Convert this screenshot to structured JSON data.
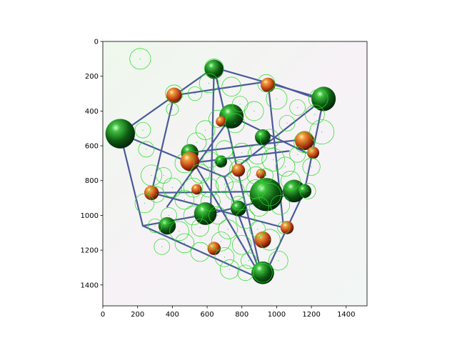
{
  "chart_data": {
    "type": "scatter",
    "title": "",
    "xlabel": "",
    "ylabel": "",
    "xlim": [
      0,
      1520
    ],
    "ylim": [
      1520,
      0
    ],
    "y_inverted": true,
    "grid": false,
    "legend": "none",
    "x_ticks": [
      0,
      200,
      400,
      600,
      800,
      1000,
      1200,
      1400
    ],
    "y_ticks": [
      0,
      200,
      400,
      600,
      800,
      1000,
      1200,
      1400
    ],
    "background_image": "photo of a ball-and-stick crystal lattice model (green and orange spheres on a white cloth)",
    "marker_style": "hollow circle",
    "marker_color": "#22dd22",
    "series": [
      {
        "points": [
          {
            "x": 215,
            "y": 100,
            "r": 60
          },
          {
            "x": 640,
            "y": 155,
            "r": 55
          },
          {
            "x": 610,
            "y": 240,
            "r": 55
          },
          {
            "x": 740,
            "y": 260,
            "r": 55
          },
          {
            "x": 940,
            "y": 240,
            "r": 50
          },
          {
            "x": 1000,
            "y": 330,
            "r": 60
          },
          {
            "x": 1120,
            "y": 380,
            "r": 45
          },
          {
            "x": 1240,
            "y": 330,
            "r": 55
          },
          {
            "x": 1220,
            "y": 420,
            "r": 55
          },
          {
            "x": 410,
            "y": 300,
            "r": 50
          },
          {
            "x": 400,
            "y": 390,
            "r": 35
          },
          {
            "x": 530,
            "y": 300,
            "r": 40
          },
          {
            "x": 790,
            "y": 360,
            "r": 45
          },
          {
            "x": 870,
            "y": 400,
            "r": 55
          },
          {
            "x": 1060,
            "y": 470,
            "r": 45
          },
          {
            "x": 660,
            "y": 445,
            "r": 50
          },
          {
            "x": 760,
            "y": 470,
            "r": 55
          },
          {
            "x": 590,
            "y": 510,
            "r": 55
          },
          {
            "x": 230,
            "y": 510,
            "r": 45
          },
          {
            "x": 1260,
            "y": 520,
            "r": 70
          },
          {
            "x": 960,
            "y": 560,
            "r": 55
          },
          {
            "x": 540,
            "y": 580,
            "r": 55
          },
          {
            "x": 1160,
            "y": 580,
            "r": 60
          },
          {
            "x": 1120,
            "y": 650,
            "r": 45
          },
          {
            "x": 250,
            "y": 620,
            "r": 45
          },
          {
            "x": 700,
            "y": 620,
            "r": 50
          },
          {
            "x": 800,
            "y": 640,
            "r": 55
          },
          {
            "x": 890,
            "y": 650,
            "r": 55
          },
          {
            "x": 980,
            "y": 680,
            "r": 65
          },
          {
            "x": 1050,
            "y": 720,
            "r": 55
          },
          {
            "x": 1200,
            "y": 720,
            "r": 50
          },
          {
            "x": 620,
            "y": 680,
            "r": 45
          },
          {
            "x": 470,
            "y": 700,
            "r": 55
          },
          {
            "x": 560,
            "y": 760,
            "r": 55
          },
          {
            "x": 690,
            "y": 720,
            "r": 55
          },
          {
            "x": 790,
            "y": 740,
            "r": 60
          },
          {
            "x": 880,
            "y": 770,
            "r": 50
          },
          {
            "x": 940,
            "y": 770,
            "r": 40
          },
          {
            "x": 1080,
            "y": 800,
            "r": 55
          },
          {
            "x": 1180,
            "y": 860,
            "r": 45
          },
          {
            "x": 280,
            "y": 770,
            "r": 60
          },
          {
            "x": 350,
            "y": 770,
            "r": 45
          },
          {
            "x": 400,
            "y": 840,
            "r": 55
          },
          {
            "x": 520,
            "y": 840,
            "r": 55
          },
          {
            "x": 610,
            "y": 840,
            "r": 55
          },
          {
            "x": 700,
            "y": 820,
            "r": 50
          },
          {
            "x": 760,
            "y": 860,
            "r": 55
          },
          {
            "x": 880,
            "y": 850,
            "r": 55
          },
          {
            "x": 960,
            "y": 880,
            "r": 65
          },
          {
            "x": 240,
            "y": 930,
            "r": 55
          },
          {
            "x": 310,
            "y": 880,
            "r": 45
          },
          {
            "x": 470,
            "y": 910,
            "r": 55
          },
          {
            "x": 620,
            "y": 920,
            "r": 55
          },
          {
            "x": 780,
            "y": 930,
            "r": 40
          },
          {
            "x": 900,
            "y": 950,
            "r": 55
          },
          {
            "x": 1020,
            "y": 940,
            "r": 55
          },
          {
            "x": 380,
            "y": 1000,
            "r": 45
          },
          {
            "x": 520,
            "y": 1000,
            "r": 55
          },
          {
            "x": 660,
            "y": 1000,
            "r": 50
          },
          {
            "x": 820,
            "y": 1020,
            "r": 55
          },
          {
            "x": 300,
            "y": 1060,
            "r": 40
          },
          {
            "x": 440,
            "y": 1090,
            "r": 55
          },
          {
            "x": 560,
            "y": 1070,
            "r": 50
          },
          {
            "x": 720,
            "y": 1080,
            "r": 55
          },
          {
            "x": 890,
            "y": 1080,
            "r": 45
          },
          {
            "x": 1040,
            "y": 1070,
            "r": 35
          },
          {
            "x": 470,
            "y": 1160,
            "r": 55
          },
          {
            "x": 560,
            "y": 1210,
            "r": 55
          },
          {
            "x": 680,
            "y": 1150,
            "r": 55
          },
          {
            "x": 800,
            "y": 1170,
            "r": 55
          },
          {
            "x": 960,
            "y": 1140,
            "r": 60
          },
          {
            "x": 700,
            "y": 1240,
            "r": 55
          },
          {
            "x": 840,
            "y": 1260,
            "r": 45
          },
          {
            "x": 1010,
            "y": 1260,
            "r": 55
          },
          {
            "x": 820,
            "y": 1330,
            "r": 45
          },
          {
            "x": 920,
            "y": 1330,
            "r": 55
          },
          {
            "x": 730,
            "y": 1310,
            "r": 55
          },
          {
            "x": 340,
            "y": 1180,
            "r": 45
          }
        ]
      }
    ]
  }
}
